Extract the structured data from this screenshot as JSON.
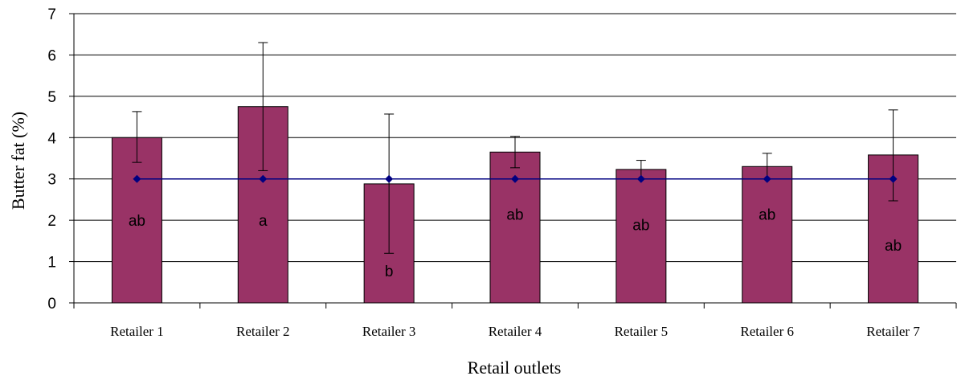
{
  "chart_data": {
    "type": "bar",
    "xlabel": "Retail outlets",
    "ylabel": "Butter fat (%)",
    "ylim": [
      0,
      7
    ],
    "yticks": [
      0,
      1,
      2,
      3,
      4,
      5,
      6,
      7
    ],
    "grid": true,
    "categories": [
      "Retailer 1",
      "Retailer 2",
      "Retailer 3",
      "Retailer 4",
      "Retailer 5",
      "Retailer 6",
      "Retailer 7"
    ],
    "series": [
      {
        "type": "bar",
        "values": [
          4.0,
          4.75,
          2.88,
          3.65,
          3.23,
          3.3,
          3.58
        ],
        "error_upper": [
          4.63,
          6.3,
          4.57,
          4.03,
          3.45,
          3.62,
          4.67
        ],
        "error_lower": [
          3.4,
          3.2,
          1.2,
          3.27,
          3.0,
          3.0,
          2.47
        ],
        "color": "#993366"
      },
      {
        "type": "line",
        "values": [
          3,
          3,
          3,
          3,
          3,
          3,
          3
        ],
        "color": "#000080"
      }
    ],
    "annotations": [
      {
        "category": "Retailer 1",
        "text": "ab",
        "y": 2.0
      },
      {
        "category": "Retailer 2",
        "text": "a",
        "y": 2.0
      },
      {
        "category": "Retailer 3",
        "text": "b",
        "y": 0.78
      },
      {
        "category": "Retailer 4",
        "text": "ab",
        "y": 2.15
      },
      {
        "category": "Retailer 5",
        "text": "ab",
        "y": 1.9
      },
      {
        "category": "Retailer 6",
        "text": "ab",
        "y": 2.15
      },
      {
        "category": "Retailer 7",
        "text": "ab",
        "y": 1.4
      }
    ]
  }
}
